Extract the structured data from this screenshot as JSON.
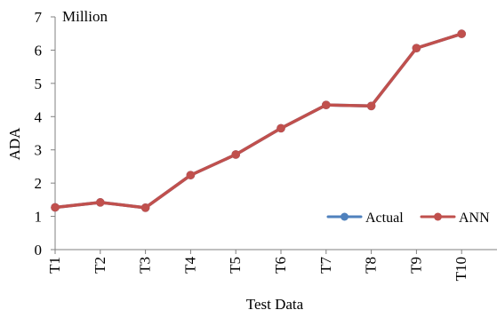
{
  "chart_data": {
    "type": "line",
    "unit_label": "Million",
    "xlabel": "Test Data",
    "ylabel": "ADA",
    "categories": [
      "T1",
      "T2",
      "T3",
      "T4",
      "T5",
      "T6",
      "T7",
      "T8",
      "T9",
      "T10"
    ],
    "ylim": [
      0,
      7
    ],
    "yticks": [
      0,
      1,
      2,
      3,
      4,
      5,
      6,
      7
    ],
    "grid": false,
    "legend_position": "bottom-right",
    "series": [
      {
        "name": "Actual",
        "color": "#4f81bd",
        "values": [
          1.27,
          1.42,
          1.26,
          2.24,
          2.86,
          3.65,
          4.35,
          4.32,
          6.06,
          6.49
        ]
      },
      {
        "name": "ANN",
        "color": "#c0504d",
        "values": [
          1.27,
          1.42,
          1.26,
          2.24,
          2.86,
          3.65,
          4.35,
          4.32,
          6.06,
          6.49
        ]
      }
    ]
  }
}
